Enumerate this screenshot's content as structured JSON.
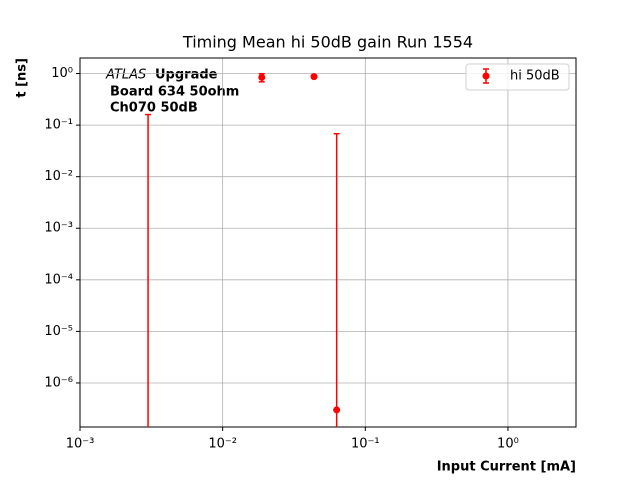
{
  "chart_data": {
    "type": "errorbar",
    "title": "Timing Mean hi 50dB gain Run 1554",
    "xlabel": "Input Current [mA]",
    "ylabel": "t [ns]",
    "annotation": {
      "experiment": "ATLAS",
      "tag": "Upgrade",
      "lines": [
        "Board 634 50ohm",
        "Ch070 50dB"
      ]
    },
    "xscale": "log",
    "yscale": "log",
    "grid": true,
    "legend": "upper right",
    "xlim": [
      0.001,
      3
    ],
    "ylim": [
      1.4e-07,
      2
    ],
    "xticks": [
      {
        "value": 0.001,
        "label": "10⁻³"
      },
      {
        "value": 0.01,
        "label": "10⁻²"
      },
      {
        "value": 0.1,
        "label": "10⁻¹"
      },
      {
        "value": 1,
        "label": "10⁰"
      }
    ],
    "yticks": [
      {
        "value": 1e-06,
        "label": "10⁻⁶"
      },
      {
        "value": 1e-05,
        "label": "10⁻⁵"
      },
      {
        "value": 0.0001,
        "label": "10⁻⁴"
      },
      {
        "value": 0.001,
        "label": "10⁻³"
      },
      {
        "value": 0.01,
        "label": "10⁻²"
      },
      {
        "value": 0.1,
        "label": "10⁻¹"
      },
      {
        "value": 1,
        "label": "10⁰"
      }
    ],
    "series": [
      {
        "name": "hi 50dB",
        "color": "#ff0000",
        "x": [
          0.003,
          0.0188,
          0.0437,
          0.063
        ],
        "values": [
          0,
          0.84,
          0.87,
          3e-07
        ],
        "errors": [
          0.16,
          0.15,
          0.03,
          0.068
        ]
      }
    ]
  }
}
